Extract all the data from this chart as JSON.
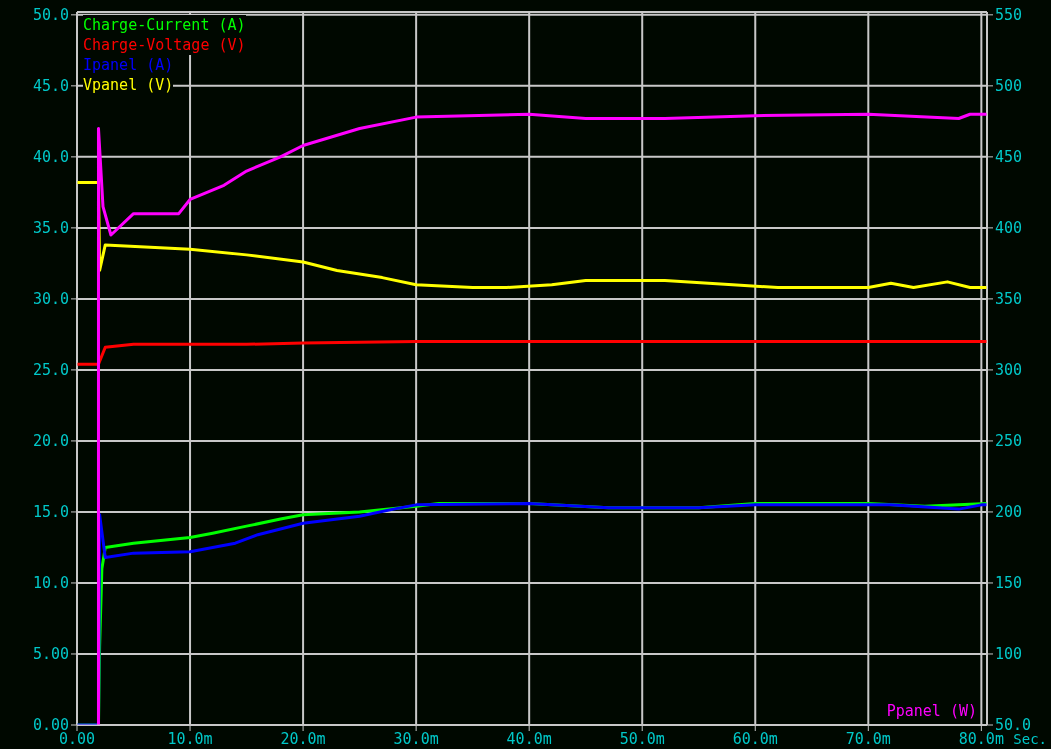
{
  "chart_data": {
    "type": "line",
    "xlabel": "Sec.",
    "y2label": "Ppanel (W)",
    "legend": "top left",
    "grid": true,
    "marker": "none",
    "xlim": [
      0,
      80.5
    ],
    "xticks": [
      {
        "value": 0,
        "label": "0.00"
      },
      {
        "value": 10,
        "label": "10.0m"
      },
      {
        "value": 20,
        "label": "20.0m"
      },
      {
        "value": 30,
        "label": "30.0m"
      },
      {
        "value": 40,
        "label": "40.0m"
      },
      {
        "value": 50,
        "label": "50.0m"
      },
      {
        "value": 60,
        "label": "60.0m"
      },
      {
        "value": 70,
        "label": "70.0m"
      },
      {
        "value": 80,
        "label": "80.0m"
      }
    ],
    "ylim": [
      0,
      50.2
    ],
    "yticks": [
      {
        "value": 0,
        "label": "0.00"
      },
      {
        "value": 5,
        "label": "5.00"
      },
      {
        "value": 10,
        "label": "10.0"
      },
      {
        "value": 15,
        "label": "15.0"
      },
      {
        "value": 20,
        "label": "20.0"
      },
      {
        "value": 25,
        "label": "25.0"
      },
      {
        "value": 30,
        "label": "30.0"
      },
      {
        "value": 35,
        "label": "35.0"
      },
      {
        "value": 40,
        "label": "40.0"
      },
      {
        "value": 45,
        "label": "45.0"
      },
      {
        "value": 50,
        "label": "50.0"
      }
    ],
    "y2lim": [
      50,
      552
    ],
    "y2ticks": [
      {
        "value": 50,
        "label": "50.0"
      },
      100,
      150,
      200,
      250,
      300,
      350,
      400,
      450,
      500,
      550
    ],
    "series": [
      {
        "name": "Charge-Current (A)",
        "color": "#00ff00",
        "x": [
          0,
          1.9,
          2.0,
          2.2,
          2.5,
          5,
          10,
          12,
          15,
          18,
          20,
          25,
          30,
          32,
          40,
          47,
          55,
          60,
          70,
          75,
          80.5
        ],
        "values": [
          0,
          0,
          5.5,
          11,
          12.5,
          12.8,
          13.2,
          13.5,
          14,
          14.5,
          14.8,
          15,
          15.4,
          15.6,
          15.6,
          15.3,
          15.3,
          15.6,
          15.6,
          15.4,
          15.6
        ]
      },
      {
        "name": "Charge-Voltage (V)",
        "color": "#ff0000",
        "x": [
          0,
          1.9,
          2.5,
          5,
          15,
          20,
          30,
          80.5
        ],
        "values": [
          25.4,
          25.4,
          26.6,
          26.8,
          26.8,
          26.9,
          27,
          27
        ]
      },
      {
        "name": "Ipanel (A)",
        "color": "#0000ff",
        "x": [
          0,
          1.9,
          2.0,
          2.5,
          5,
          10,
          14,
          16,
          18,
          20,
          25,
          28,
          30,
          40,
          47,
          55,
          60,
          72,
          78,
          80,
          80.5
        ],
        "values": [
          0,
          0,
          14.8,
          11.8,
          12.1,
          12.2,
          12.8,
          13.4,
          13.8,
          14.2,
          14.7,
          15.2,
          15.5,
          15.6,
          15.3,
          15.3,
          15.5,
          15.5,
          15.2,
          15.5,
          15.5
        ]
      },
      {
        "name": "Vpanel (V)",
        "color": "#ffff00",
        "x": [
          0,
          1.9,
          2.0,
          2.5,
          10,
          15,
          20,
          23,
          27,
          30,
          35,
          38,
          42,
          45,
          52,
          58,
          62,
          70,
          72,
          74,
          77,
          79,
          80.5
        ],
        "values": [
          38.2,
          38.2,
          32,
          33.8,
          33.5,
          33.1,
          32.6,
          32,
          31.5,
          31,
          30.8,
          30.8,
          31,
          31.3,
          31.3,
          31,
          30.8,
          30.8,
          31.1,
          30.8,
          31.2,
          30.8,
          30.8
        ]
      },
      {
        "color": "#ff00ff",
        "axis": "y2",
        "x": [
          1.9,
          1.9,
          2.3,
          3,
          5,
          9,
          10,
          13,
          15,
          18,
          20,
          25,
          30,
          40,
          45,
          52,
          60,
          70,
          78,
          79,
          80.5
        ],
        "values": [
          50,
          470,
          415,
          395,
          410,
          410,
          420,
          430,
          440,
          450,
          458,
          470,
          478,
          480,
          477,
          477,
          479,
          480,
          477,
          480,
          480
        ]
      }
    ]
  }
}
